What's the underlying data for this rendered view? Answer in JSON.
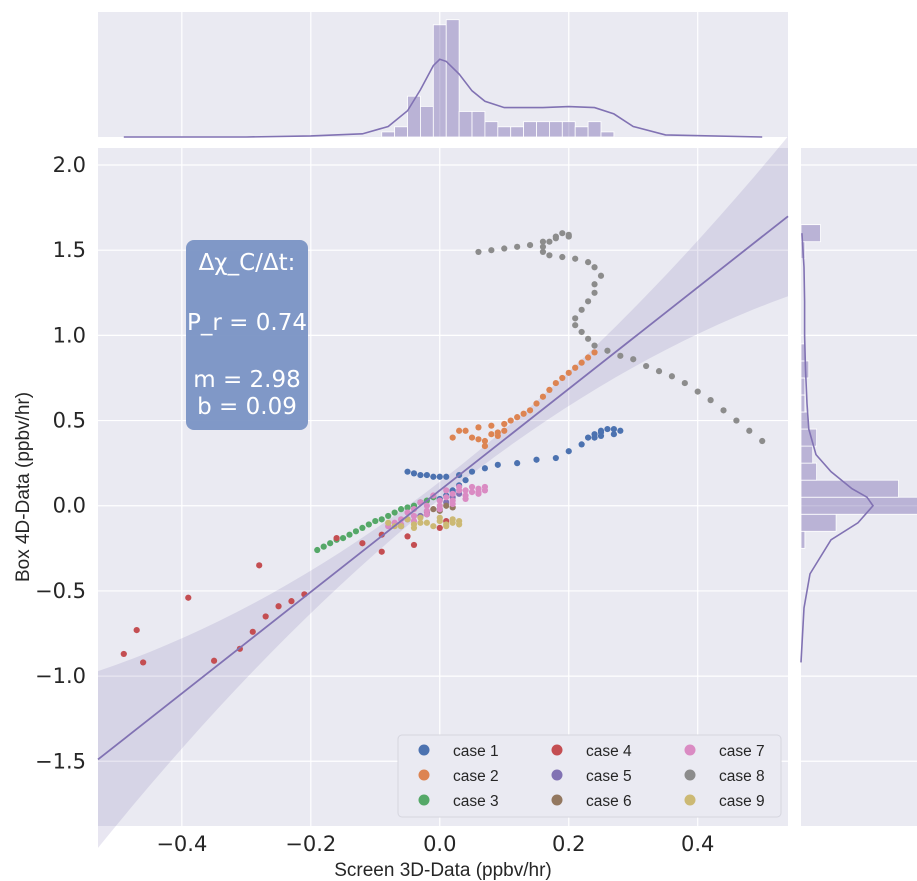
{
  "chart_data": {
    "type": "scatter",
    "xlabel": "Screen 3D-Data (ppbv/hr)",
    "ylabel": "Box 4D-Data (ppbv/hr)",
    "xlim": [
      -0.53,
      0.54
    ],
    "ylim": [
      -1.88,
      2.1
    ],
    "x_ticks": [
      "−0.4",
      "−0.2",
      "0.0",
      "0.2",
      "0.4"
    ],
    "x_tick_values": [
      -0.4,
      -0.2,
      0.0,
      0.2,
      0.4
    ],
    "y_ticks": [
      "2.0",
      "1.5",
      "1.0",
      "0.5",
      "0.0",
      "−0.5",
      "−1.0",
      "−1.5"
    ],
    "y_tick_values": [
      2.0,
      1.5,
      1.0,
      0.5,
      0.0,
      -0.5,
      -1.0,
      -1.5
    ],
    "grid": true,
    "background": "#eaeaf2",
    "legend_placement": "lower-right",
    "annotation": {
      "line1": "Δχ_C/Δt:",
      "line2": "P_r = 0.74",
      "line3": "m = 2.98",
      "line4": "b = 0.09",
      "color": "#7a93c4"
    },
    "regression": {
      "slope": 2.98,
      "intercept": 0.09,
      "color": "#8172b3"
    },
    "series": [
      {
        "name": "case 1",
        "color": "#4c72b0",
        "points": [
          [
            -0.05,
            0.2
          ],
          [
            -0.04,
            0.19
          ],
          [
            -0.03,
            0.18
          ],
          [
            -0.02,
            0.18
          ],
          [
            -0.01,
            0.17
          ],
          [
            0.0,
            0.17
          ],
          [
            0.01,
            0.17
          ],
          [
            0.03,
            0.18
          ],
          [
            0.05,
            0.2
          ],
          [
            0.07,
            0.22
          ],
          [
            0.09,
            0.24
          ],
          [
            0.12,
            0.25
          ],
          [
            0.15,
            0.27
          ],
          [
            0.18,
            0.28
          ],
          [
            0.2,
            0.32
          ],
          [
            0.22,
            0.36
          ],
          [
            0.23,
            0.4
          ],
          [
            0.24,
            0.42
          ],
          [
            0.25,
            0.44
          ],
          [
            0.27,
            0.45
          ],
          [
            0.28,
            0.44
          ],
          [
            0.27,
            0.42
          ],
          [
            0.25,
            0.41
          ],
          [
            0.24,
            0.4
          ],
          [
            0.25,
            0.43
          ],
          [
            0.26,
            0.45
          ],
          [
            0.04,
            0.15
          ],
          [
            0.03,
            0.12
          ],
          [
            0.02,
            0.09
          ],
          [
            0.01,
            0.06
          ],
          [
            0.0,
            0.04
          ],
          [
            0.02,
            0.08
          ]
        ]
      },
      {
        "name": "case 2",
        "color": "#dd8452",
        "points": [
          [
            0.24,
            0.9
          ],
          [
            0.23,
            0.87
          ],
          [
            0.22,
            0.84
          ],
          [
            0.21,
            0.81
          ],
          [
            0.2,
            0.78
          ],
          [
            0.19,
            0.75
          ],
          [
            0.18,
            0.72
          ],
          [
            0.17,
            0.68
          ],
          [
            0.16,
            0.64
          ],
          [
            0.15,
            0.6
          ],
          [
            0.14,
            0.56
          ],
          [
            0.13,
            0.54
          ],
          [
            0.12,
            0.52
          ],
          [
            0.11,
            0.5
          ],
          [
            0.1,
            0.48
          ],
          [
            0.08,
            0.47
          ],
          [
            0.06,
            0.46
          ],
          [
            0.04,
            0.44
          ],
          [
            0.05,
            0.4
          ],
          [
            0.07,
            0.38
          ],
          [
            0.09,
            0.41
          ],
          [
            0.1,
            0.44
          ],
          [
            0.08,
            0.42
          ],
          [
            0.06,
            0.39
          ],
          [
            0.07,
            0.35
          ],
          [
            0.09,
            0.43
          ],
          [
            0.03,
            0.44
          ],
          [
            0.02,
            0.4
          ]
        ]
      },
      {
        "name": "case 3",
        "color": "#55a868",
        "points": [
          [
            -0.19,
            -0.26
          ],
          [
            -0.18,
            -0.24
          ],
          [
            -0.17,
            -0.22
          ],
          [
            -0.16,
            -0.2
          ],
          [
            -0.15,
            -0.19
          ],
          [
            -0.14,
            -0.17
          ],
          [
            -0.13,
            -0.15
          ],
          [
            -0.12,
            -0.13
          ],
          [
            -0.11,
            -0.11
          ],
          [
            -0.1,
            -0.09
          ],
          [
            -0.09,
            -0.08
          ],
          [
            -0.08,
            -0.06
          ],
          [
            -0.07,
            -0.04
          ],
          [
            -0.06,
            -0.02
          ],
          [
            -0.05,
            -0.01
          ],
          [
            -0.04,
            0.0
          ],
          [
            -0.03,
            0.02
          ],
          [
            -0.02,
            0.03
          ],
          [
            -0.01,
            0.05
          ]
        ]
      },
      {
        "name": "case 4",
        "color": "#c44e52",
        "points": [
          [
            -0.49,
            -0.87
          ],
          [
            -0.47,
            -0.73
          ],
          [
            -0.46,
            -0.92
          ],
          [
            -0.39,
            -0.54
          ],
          [
            -0.35,
            -0.91
          ],
          [
            -0.31,
            -0.84
          ],
          [
            -0.29,
            -0.74
          ],
          [
            -0.28,
            -0.35
          ],
          [
            -0.27,
            -0.65
          ],
          [
            -0.25,
            -0.59
          ],
          [
            -0.23,
            -0.56
          ],
          [
            -0.21,
            -0.52
          ],
          [
            -0.16,
            -0.19
          ],
          [
            -0.12,
            -0.22
          ],
          [
            -0.09,
            -0.17
          ],
          [
            -0.09,
            -0.27
          ],
          [
            -0.05,
            -0.18
          ],
          [
            -0.04,
            -0.23
          ],
          [
            0.0,
            -0.13
          ],
          [
            0.01,
            -0.09
          ]
        ]
      },
      {
        "name": "case 5",
        "color": "#8172b3",
        "points": [
          [
            -0.06,
            -0.12
          ],
          [
            -0.05,
            -0.08
          ],
          [
            -0.03,
            -0.06
          ],
          [
            -0.02,
            -0.04
          ],
          [
            0.0,
            -0.02
          ],
          [
            0.01,
            0.02
          ],
          [
            0.02,
            0.05
          ],
          [
            0.03,
            0.07
          ]
        ]
      },
      {
        "name": "case 6",
        "color": "#937860",
        "points": [
          [
            -0.02,
            -0.05
          ],
          [
            0.0,
            -0.03
          ],
          [
            0.02,
            -0.01
          ],
          [
            0.01,
            0.0
          ],
          [
            -0.01,
            -0.02
          ]
        ]
      },
      {
        "name": "case 7",
        "color": "#da8bc3",
        "points": [
          [
            -0.06,
            -0.08
          ],
          [
            -0.04,
            -0.06
          ],
          [
            -0.02,
            -0.03
          ],
          [
            0.0,
            0.0
          ],
          [
            0.02,
            0.03
          ],
          [
            0.04,
            0.06
          ],
          [
            0.05,
            0.08
          ],
          [
            0.06,
            0.1
          ],
          [
            0.07,
            0.09
          ],
          [
            0.06,
            0.07
          ],
          [
            0.04,
            0.09
          ],
          [
            0.03,
            0.11
          ],
          [
            0.01,
            0.09
          ],
          [
            -0.01,
            0.06
          ],
          [
            -0.03,
            0.02
          ],
          [
            -0.05,
            -0.04
          ],
          [
            -0.07,
            -0.1
          ],
          [
            -0.08,
            -0.12
          ],
          [
            -0.06,
            -0.11
          ],
          [
            -0.04,
            -0.09
          ],
          [
            -0.02,
            -0.05
          ],
          [
            0.0,
            -0.02
          ],
          [
            0.02,
            0.01
          ],
          [
            0.04,
            0.04
          ],
          [
            0.06,
            0.08
          ],
          [
            0.07,
            0.11
          ],
          [
            0.05,
            0.11
          ],
          [
            0.02,
            0.07
          ],
          [
            0.0,
            0.03
          ],
          [
            -0.02,
            0.0
          ],
          [
            -0.04,
            -0.02
          ],
          [
            0.01,
            0.05
          ],
          [
            0.03,
            0.09
          ]
        ]
      },
      {
        "name": "case 8",
        "color": "#8c8c8c",
        "points": [
          [
            0.5,
            0.38
          ],
          [
            0.48,
            0.44
          ],
          [
            0.46,
            0.5
          ],
          [
            0.44,
            0.56
          ],
          [
            0.42,
            0.62
          ],
          [
            0.4,
            0.67
          ],
          [
            0.38,
            0.72
          ],
          [
            0.36,
            0.76
          ],
          [
            0.34,
            0.79
          ],
          [
            0.32,
            0.82
          ],
          [
            0.3,
            0.86
          ],
          [
            0.28,
            0.88
          ],
          [
            0.26,
            0.91
          ],
          [
            0.24,
            0.94
          ],
          [
            0.23,
            0.98
          ],
          [
            0.22,
            1.02
          ],
          [
            0.21,
            1.06
          ],
          [
            0.21,
            1.1
          ],
          [
            0.22,
            1.15
          ],
          [
            0.23,
            1.2
          ],
          [
            0.24,
            1.25
          ],
          [
            0.24,
            1.3
          ],
          [
            0.25,
            1.35
          ],
          [
            0.24,
            1.4
          ],
          [
            0.23,
            1.43
          ],
          [
            0.21,
            1.45
          ],
          [
            0.19,
            1.46
          ],
          [
            0.17,
            1.47
          ],
          [
            0.16,
            1.49
          ],
          [
            0.16,
            1.52
          ],
          [
            0.17,
            1.55
          ],
          [
            0.18,
            1.58
          ],
          [
            0.19,
            1.6
          ],
          [
            0.2,
            1.59
          ],
          [
            0.18,
            1.57
          ],
          [
            0.16,
            1.55
          ],
          [
            0.14,
            1.53
          ],
          [
            0.12,
            1.52
          ],
          [
            0.1,
            1.51
          ],
          [
            0.08,
            1.5
          ],
          [
            0.06,
            1.49
          ],
          [
            0.2,
            1.58
          ]
        ]
      },
      {
        "name": "case 9",
        "color": "#ccb974",
        "points": [
          [
            -0.08,
            -0.1
          ],
          [
            -0.06,
            -0.12
          ],
          [
            -0.04,
            -0.11
          ],
          [
            -0.02,
            -0.1
          ],
          [
            0.0,
            -0.09
          ],
          [
            0.02,
            -0.08
          ],
          [
            0.03,
            -0.09
          ],
          [
            0.03,
            -0.11
          ],
          [
            0.01,
            -0.12
          ],
          [
            -0.01,
            -0.12
          ],
          [
            -0.03,
            -0.1
          ],
          [
            -0.05,
            -0.08
          ],
          [
            -0.03,
            -0.07
          ],
          [
            0.0,
            -0.07
          ],
          [
            0.02,
            -0.1
          ],
          [
            -0.04,
            -0.13
          ],
          [
            -0.07,
            -0.12
          ],
          [
            0.01,
            -0.11
          ]
        ]
      }
    ],
    "top_histogram": {
      "color": "#8172b3",
      "bin_edges": [
        -0.09,
        -0.07,
        -0.05,
        -0.03,
        -0.01,
        0.01,
        0.03,
        0.05,
        0.07,
        0.09,
        0.11,
        0.13,
        0.15,
        0.17,
        0.19,
        0.21,
        0.23,
        0.25,
        0.27,
        0.29,
        0.31
      ],
      "counts": [
        1,
        2,
        8,
        6,
        22,
        23,
        5,
        5,
        3,
        2,
        2,
        3,
        3,
        3,
        3,
        2,
        3,
        1,
        0,
        0
      ],
      "kde_x": [
        -0.49,
        -0.3,
        -0.2,
        -0.12,
        -0.08,
        -0.05,
        -0.03,
        -0.01,
        0.0,
        0.01,
        0.03,
        0.05,
        0.07,
        0.1,
        0.13,
        0.16,
        0.2,
        0.24,
        0.27,
        0.3,
        0.35,
        0.5
      ],
      "kde_y": [
        0.0,
        0.0,
        0.1,
        0.3,
        1.0,
        2.5,
        4.5,
        6.8,
        7.4,
        7.2,
        6.0,
        4.4,
        3.4,
        2.8,
        2.8,
        2.8,
        2.9,
        2.8,
        2.2,
        1.0,
        0.2,
        0.0
      ]
    },
    "right_histogram": {
      "color": "#8172b3",
      "bin_edges": [
        -0.25,
        -0.15,
        -0.05,
        0.05,
        0.15,
        0.25,
        0.35,
        0.45,
        0.55,
        0.65,
        0.75,
        0.85,
        0.95,
        1.05,
        1.15,
        1.25,
        1.35,
        1.45,
        1.55,
        1.65
      ],
      "counts": [
        1,
        9,
        30,
        25,
        4,
        3,
        4,
        2,
        1,
        1,
        2,
        1,
        0,
        0,
        0,
        0,
        0,
        1,
        5
      ],
      "kde_y": [
        -0.92,
        -0.6,
        -0.4,
        -0.2,
        -0.1,
        0.0,
        0.05,
        0.1,
        0.2,
        0.3,
        0.45,
        0.6,
        0.8,
        1.0,
        1.2,
        1.4,
        1.6
      ],
      "kde_x": [
        0.0,
        1.0,
        3.0,
        10.0,
        19.0,
        24.0,
        22.0,
        17.0,
        10.0,
        5.0,
        2.6,
        2.0,
        1.5,
        1.2,
        1.2,
        1.0,
        0.3
      ]
    }
  }
}
